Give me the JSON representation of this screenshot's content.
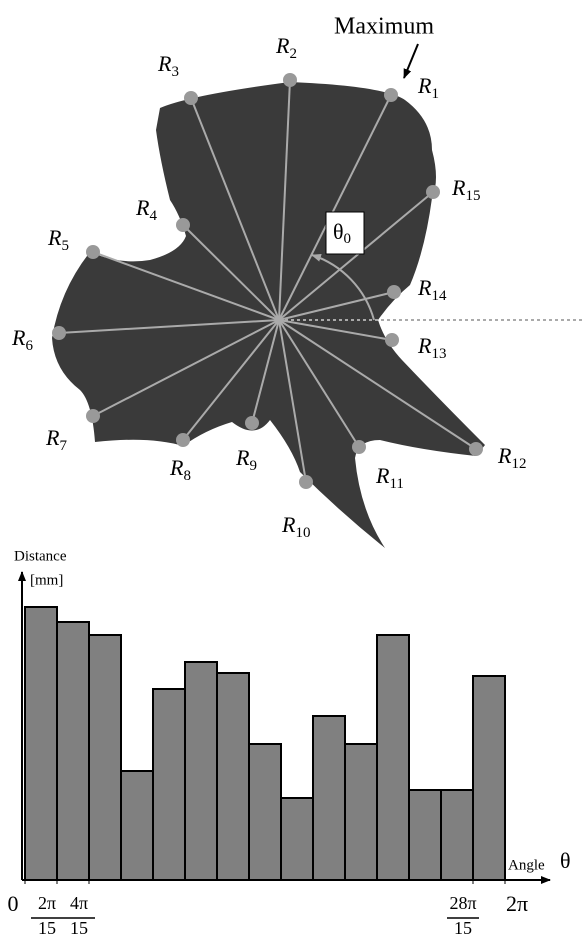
{
  "diagram": {
    "annotation": "Maximum",
    "angle_symbol": "θ",
    "angle_subscript": "0",
    "points": [
      {
        "label": "R",
        "subscript": "1"
      },
      {
        "label": "R",
        "subscript": "2"
      },
      {
        "label": "R",
        "subscript": "3"
      },
      {
        "label": "R",
        "subscript": "4"
      },
      {
        "label": "R",
        "subscript": "5"
      },
      {
        "label": "R",
        "subscript": "6"
      },
      {
        "label": "R",
        "subscript": "7"
      },
      {
        "label": "R",
        "subscript": "8"
      },
      {
        "label": "R",
        "subscript": "9"
      },
      {
        "label": "R",
        "subscript": "10"
      },
      {
        "label": "R",
        "subscript": "11"
      },
      {
        "label": "R",
        "subscript": "12"
      },
      {
        "label": "R",
        "subscript": "13"
      },
      {
        "label": "R",
        "subscript": "14"
      },
      {
        "label": "R",
        "subscript": "15"
      }
    ]
  },
  "chart_data": {
    "type": "bar",
    "ylabel": [
      "Distance",
      "[mm]"
    ],
    "xlabel": "Angle",
    "xlabel_symbol": "θ",
    "values": [
      273,
      258,
      245,
      109,
      191,
      218,
      207,
      136,
      82,
      164,
      136,
      245,
      90,
      90,
      204
    ],
    "color": "#808080",
    "ylim": [
      0,
      300
    ],
    "xlim": [
      0,
      6.2832
    ],
    "xticks": [
      {
        "value": 0,
        "label": "0"
      },
      {
        "value": 0.4189,
        "label": {
          "numerator": "2π",
          "denominator": "15"
        }
      },
      {
        "value": 0.8378,
        "label": {
          "numerator": "4π",
          "denominator": "15"
        }
      },
      {
        "value": 5.8643,
        "label": {
          "numerator": "28π",
          "denominator": "15"
        }
      },
      {
        "value": 6.2832,
        "label": "2π"
      }
    ]
  }
}
